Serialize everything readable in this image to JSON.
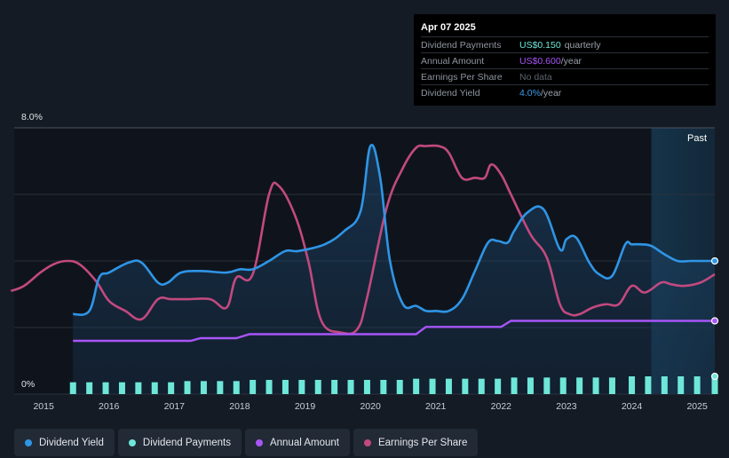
{
  "tooltip": {
    "date": "Apr 07 2025",
    "rows": [
      {
        "label": "Dividend Payments",
        "value": "US$0.150",
        "unit": "quarterly",
        "color": "#6ee7d8"
      },
      {
        "label": "Annual Amount",
        "value": "US$0.600",
        "unit": "/year",
        "color": "#a855f7"
      },
      {
        "label": "Earnings Per Share",
        "value": "No data",
        "unit": "",
        "color": "#5d636c"
      },
      {
        "label": "Dividend Yield",
        "value": "4.0%",
        "unit": "/year",
        "color": "#3b9be8"
      }
    ]
  },
  "legend": [
    {
      "label": "Dividend Yield",
      "color": "#2f95e6"
    },
    {
      "label": "Dividend Payments",
      "color": "#6ee7d8"
    },
    {
      "label": "Annual Amount",
      "color": "#a855f7"
    },
    {
      "label": "Earnings Per Share",
      "color": "#c2497f"
    }
  ],
  "chart_data": {
    "type": "line",
    "y_axis": {
      "min_label": "0%",
      "max_label": "8.0%",
      "ylim": [
        0,
        8.0
      ]
    },
    "x_ticks": [
      "2015",
      "2016",
      "2017",
      "2018",
      "2019",
      "2020",
      "2021",
      "2022",
      "2023",
      "2024",
      "2025"
    ],
    "xlim": [
      2014.55,
      2025.27
    ],
    "past_label": "Past",
    "past_region_start": 2024.3,
    "series": [
      {
        "name": "Dividend Yield",
        "unit": "%",
        "color": "#2f95e6",
        "x": [
          2015.45,
          2015.7,
          2015.85,
          2016.0,
          2016.3,
          2016.5,
          2016.75,
          2016.9,
          2017.1,
          2017.4,
          2017.8,
          2018.0,
          2018.2,
          2018.45,
          2018.7,
          2018.9,
          2019.3,
          2019.6,
          2019.85,
          2020.0,
          2020.15,
          2020.3,
          2020.5,
          2020.7,
          2020.85,
          2021.0,
          2021.2,
          2021.4,
          2021.6,
          2021.8,
          2021.95,
          2022.1,
          2022.2,
          2022.4,
          2022.65,
          2022.9,
          2023.0,
          2023.15,
          2023.35,
          2023.5,
          2023.7,
          2023.9,
          2024.0,
          2024.15,
          2024.3,
          2024.5,
          2024.7,
          2024.9,
          2025.1,
          2025.27
        ],
        "values": [
          2.4,
          2.5,
          3.5,
          3.65,
          3.95,
          3.95,
          3.35,
          3.35,
          3.65,
          3.7,
          3.65,
          3.75,
          3.75,
          4.0,
          4.3,
          4.3,
          4.5,
          4.9,
          5.5,
          7.45,
          6.5,
          4.0,
          2.7,
          2.65,
          2.5,
          2.5,
          2.5,
          2.85,
          3.7,
          4.55,
          4.6,
          4.55,
          4.9,
          5.45,
          5.55,
          4.35,
          4.65,
          4.7,
          3.95,
          3.6,
          3.55,
          4.5,
          4.5,
          4.5,
          4.45,
          4.2,
          4.0,
          4.0,
          4.0,
          4.0
        ]
      },
      {
        "name": "Annual Amount",
        "unit": "%",
        "color": "#a855f7",
        "x": [
          2015.45,
          2017.25,
          2017.4,
          2017.95,
          2018.15,
          2020.7,
          2020.85,
          2022.0,
          2022.15,
          2025.27
        ],
        "values": [
          1.6,
          1.6,
          1.68,
          1.68,
          1.8,
          1.8,
          2.02,
          2.02,
          2.2,
          2.2
        ]
      },
      {
        "name": "Earnings Per Share",
        "unit": "%",
        "color": "#c2497f",
        "x": [
          2014.5,
          2014.7,
          2014.95,
          2015.15,
          2015.35,
          2015.55,
          2015.8,
          2016.0,
          2016.25,
          2016.5,
          2016.75,
          2016.95,
          2017.2,
          2017.55,
          2017.8,
          2017.95,
          2018.2,
          2018.45,
          2018.6,
          2018.85,
          2019.05,
          2019.25,
          2019.55,
          2019.8,
          2019.95,
          2020.25,
          2020.5,
          2020.7,
          2020.85,
          2021.05,
          2021.2,
          2021.4,
          2021.6,
          2021.75,
          2021.85,
          2022.0,
          2022.15,
          2022.45,
          2022.7,
          2022.9,
          2023.05,
          2023.2,
          2023.4,
          2023.6,
          2023.8,
          2024.0,
          2024.2,
          2024.45,
          2024.6,
          2024.8,
          2025.05,
          2025.27
        ],
        "values": [
          3.1,
          3.25,
          3.65,
          3.9,
          4.0,
          3.9,
          3.4,
          2.8,
          2.5,
          2.25,
          2.85,
          2.85,
          2.85,
          2.85,
          2.6,
          3.5,
          3.6,
          6.0,
          6.25,
          5.35,
          4.0,
          2.2,
          1.85,
          1.95,
          2.9,
          5.6,
          6.8,
          7.4,
          7.45,
          7.45,
          7.25,
          6.5,
          6.5,
          6.5,
          6.9,
          6.6,
          6.0,
          4.8,
          4.1,
          2.7,
          2.4,
          2.4,
          2.6,
          2.7,
          2.7,
          3.25,
          3.05,
          3.35,
          3.3,
          3.25,
          3.35,
          3.6
        ]
      },
      {
        "name": "Dividend Payments",
        "unit": "US$",
        "color": "#6ee7d8",
        "type": "bar",
        "x": [
          2015.45,
          2015.7,
          2015.95,
          2016.2,
          2016.45,
          2016.7,
          2016.95,
          2017.2,
          2017.45,
          2017.7,
          2017.95,
          2018.2,
          2018.45,
          2018.7,
          2018.95,
          2019.2,
          2019.45,
          2019.7,
          2019.95,
          2020.2,
          2020.45,
          2020.7,
          2020.95,
          2021.2,
          2021.45,
          2021.7,
          2021.95,
          2022.2,
          2022.45,
          2022.7,
          2022.95,
          2023.2,
          2023.45,
          2023.7,
          2024.0,
          2024.25,
          2024.5,
          2024.75,
          2025.0,
          2025.27
        ],
        "values": [
          0.1,
          0.1,
          0.1,
          0.1,
          0.1,
          0.1,
          0.1,
          0.11,
          0.11,
          0.11,
          0.11,
          0.12,
          0.12,
          0.12,
          0.12,
          0.12,
          0.12,
          0.12,
          0.12,
          0.12,
          0.12,
          0.13,
          0.13,
          0.13,
          0.13,
          0.13,
          0.13,
          0.14,
          0.14,
          0.14,
          0.14,
          0.14,
          0.14,
          0.14,
          0.15,
          0.15,
          0.15,
          0.15,
          0.15,
          0.15
        ]
      }
    ]
  }
}
